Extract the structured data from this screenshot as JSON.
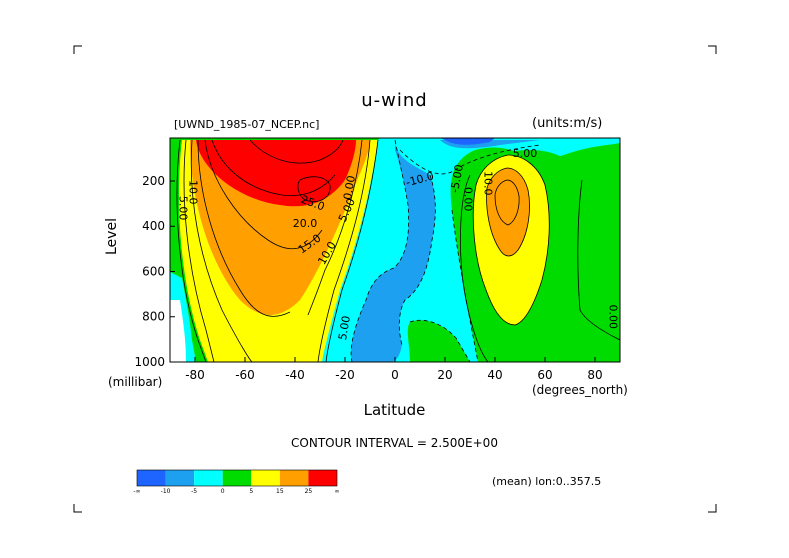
{
  "chart_data": {
    "type": "contour",
    "title": "u-wind",
    "dataset": "[UWND_1985-07_NCEP.nc]",
    "units": "(units:m/s)",
    "xlabel": "Latitude",
    "xunit": "(degrees_north)",
    "ylabel": "Level",
    "yunit": "(millibar)",
    "xlim": [
      -90,
      90
    ],
    "ylim": [
      1000,
      10
    ],
    "x_ticks": [
      -80,
      -60,
      -40,
      -20,
      0,
      20,
      40,
      60,
      80
    ],
    "y_ticks": [
      200,
      400,
      600,
      800,
      1000
    ],
    "contour_interval": "CONTOUR INTERVAL = 2.500E+00",
    "footer": "(mean) lon:0..357.5",
    "colorbar": {
      "colors": [
        "#1e64ff",
        "#1ea0f0",
        "#00ffff",
        "#00dc00",
        "#ffff00",
        "#ffa000",
        "#ff0000"
      ],
      "labels": [
        "-∞",
        "-10",
        "-5",
        "0",
        "5",
        "15",
        "25",
        "∞"
      ]
    },
    "contour_labels": [
      {
        "text": "10.0",
        "lat": -81,
        "lev": 250,
        "rot": 90
      },
      {
        "text": "5.00",
        "lat": -85,
        "lev": 320,
        "rot": 90
      },
      {
        "text": "25.0",
        "lat": -33,
        "lev": 300,
        "rot": 20
      },
      {
        "text": "20.0",
        "lat": -36,
        "lev": 390,
        "rot": 0
      },
      {
        "text": "15.0",
        "lat": -34,
        "lev": 480,
        "rot": -35
      },
      {
        "text": "10.0",
        "lat": -27,
        "lev": 520,
        "rot": -60
      },
      {
        "text": "5.00",
        "lat": -19,
        "lev": 330,
        "rot": -65
      },
      {
        "text": "0.00",
        "lat": -18,
        "lev": 230,
        "rot": -80
      },
      {
        "text": "-10.0",
        "lat": 10,
        "lev": 195,
        "rot": -15
      },
      {
        "text": "-5.00",
        "lat": 25,
        "lev": 190,
        "rot": -80
      },
      {
        "text": "0.00",
        "lat": 29,
        "lev": 280,
        "rot": 90
      },
      {
        "text": "10.0",
        "lat": 37,
        "lev": 210,
        "rot": 90
      },
      {
        "text": "5.00",
        "lat": 52,
        "lev": 80,
        "rot": 0
      },
      {
        "text": "5.00",
        "lat": -20,
        "lev": 850,
        "rot": -80
      },
      {
        "text": "0.00",
        "lat": 87,
        "lev": 800,
        "rot": 90
      }
    ]
  }
}
